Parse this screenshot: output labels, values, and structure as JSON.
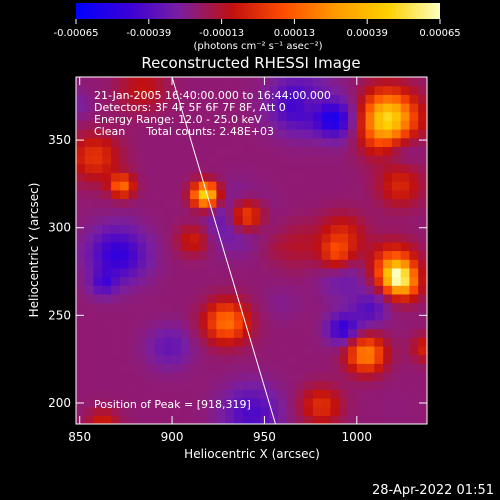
{
  "colorbar": {
    "ticks": [
      "-0.00065",
      "-0.00039",
      "-0.00013",
      "0.00013",
      "0.00039",
      "0.00065"
    ],
    "unit_label": "(photons cm⁻² s⁻¹ asec⁻²)",
    "colors": [
      "#0000ff",
      "#3a00d8",
      "#7a1fa0",
      "#c01010",
      "#ff4d00",
      "#ff9a00",
      "#ffd000",
      "#ffffc0"
    ]
  },
  "chart_data": {
    "type": "heatmap",
    "title": "Reconstructed RHESSI Image",
    "xlabel": "Heliocentric X (arcsec)",
    "ylabel": "Heliocentric Y (arcsec)",
    "xlim": [
      848,
      1038
    ],
    "ylim": [
      188,
      386
    ],
    "x_ticks": [
      850,
      900,
      950,
      1000
    ],
    "y_ticks": [
      200,
      250,
      300,
      350
    ],
    "peak": [
      918,
      319
    ],
    "limb_line": [
      [
        900,
        386
      ],
      [
        956,
        188
      ]
    ],
    "annotations": [
      "21-Jan-2005 16:40:00.000 to 16:44:00.000",
      "Detectors: 3F 4F 5F 6F 7F 8F, Att 0",
      "Energy Range: 12.0 - 25.0 keV",
      "Clean      Total counts: 2.48E+03",
      "Position of Peak = [918,319]"
    ],
    "timestamp": "28-Apr-2022 01:51"
  }
}
